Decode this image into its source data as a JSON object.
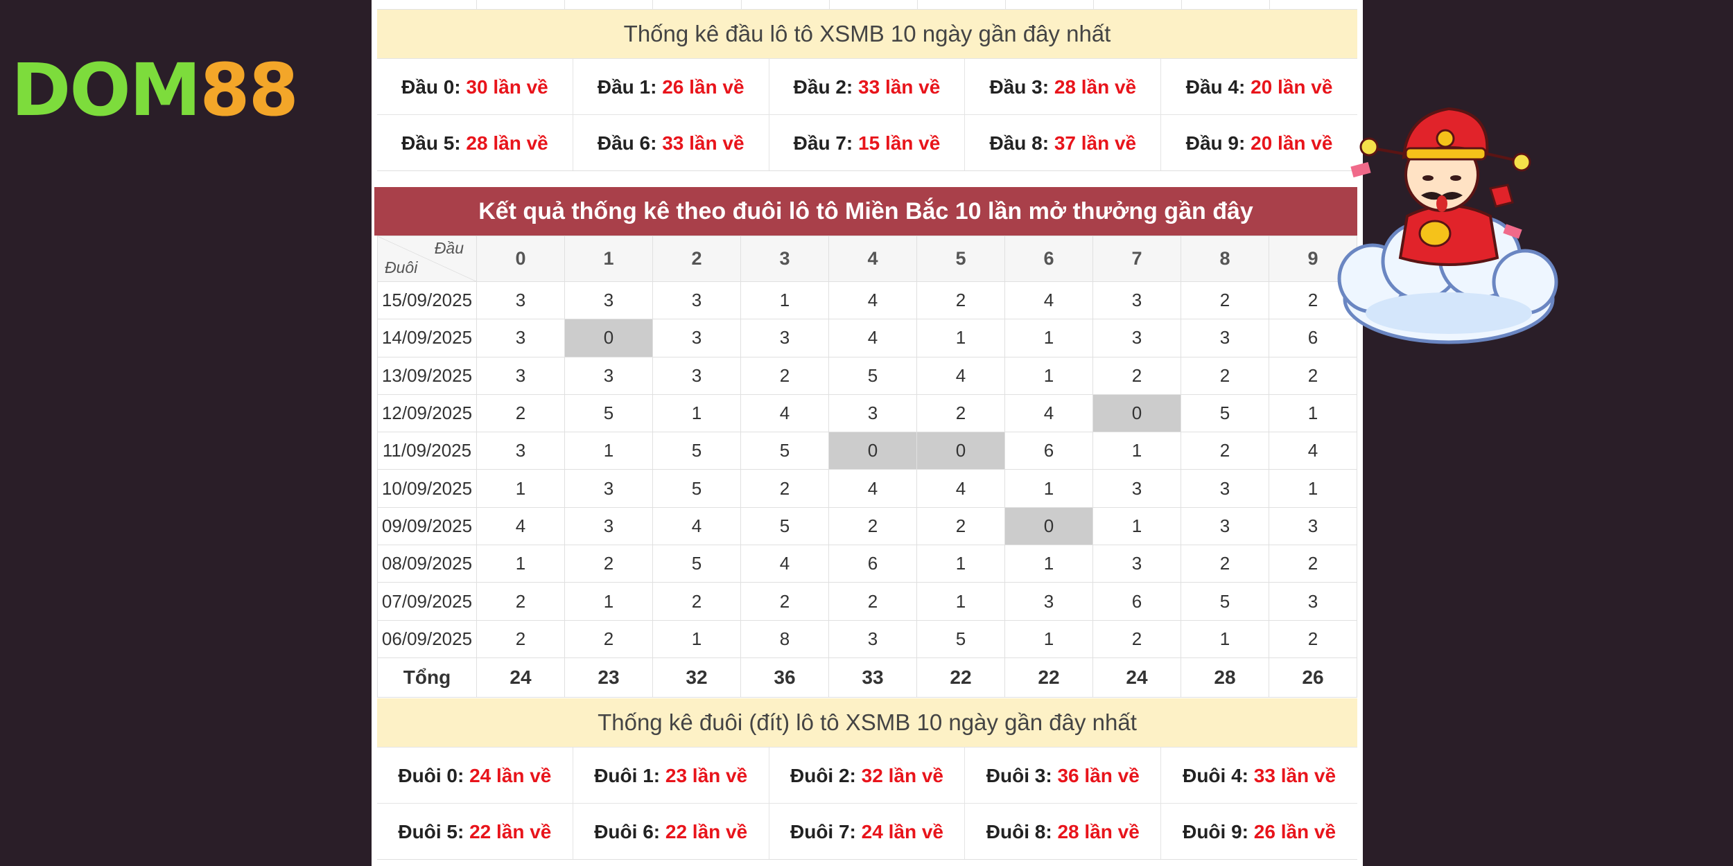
{
  "logo": {
    "part1": "DOM",
    "part2": "88"
  },
  "dau_stats": {
    "title": "Thống kê đầu lô tô XSMB 10 ngày gần đây nhất",
    "items": [
      {
        "label": "Đầu 0:",
        "value": "30 lần về"
      },
      {
        "label": "Đầu 1:",
        "value": "26 lần về"
      },
      {
        "label": "Đầu 2:",
        "value": "33 lần về"
      },
      {
        "label": "Đầu 3:",
        "value": "28 lần về"
      },
      {
        "label": "Đầu 4:",
        "value": "20 lần về"
      },
      {
        "label": "Đầu 5:",
        "value": "28 lần về"
      },
      {
        "label": "Đầu 6:",
        "value": "33 lần về"
      },
      {
        "label": "Đầu 7:",
        "value": "15 lần về"
      },
      {
        "label": "Đầu 8:",
        "value": "37 lần về"
      },
      {
        "label": "Đầu 9:",
        "value": "20 lần về"
      }
    ]
  },
  "duoi_table": {
    "title": "Kết quả thống kê theo đuôi lô tô Miền Bắc 10 lần mở thưởng gần đây",
    "corner_top": "Đầu",
    "corner_bottom": "Đuôi",
    "columns": [
      "0",
      "1",
      "2",
      "3",
      "4",
      "5",
      "6",
      "7",
      "8",
      "9"
    ],
    "rows": [
      {
        "date": "15/09/2025",
        "values": [
          "3",
          "3",
          "3",
          "1",
          "4",
          "2",
          "4",
          "3",
          "2",
          "2"
        ]
      },
      {
        "date": "14/09/2025",
        "values": [
          "3",
          "0",
          "3",
          "3",
          "4",
          "1",
          "1",
          "3",
          "3",
          "6"
        ]
      },
      {
        "date": "13/09/2025",
        "values": [
          "3",
          "3",
          "3",
          "2",
          "5",
          "4",
          "1",
          "2",
          "2",
          "2"
        ]
      },
      {
        "date": "12/09/2025",
        "values": [
          "2",
          "5",
          "1",
          "4",
          "3",
          "2",
          "4",
          "0",
          "5",
          "1"
        ]
      },
      {
        "date": "11/09/2025",
        "values": [
          "3",
          "1",
          "5",
          "5",
          "0",
          "0",
          "6",
          "1",
          "2",
          "4"
        ]
      },
      {
        "date": "10/09/2025",
        "values": [
          "1",
          "3",
          "5",
          "2",
          "4",
          "4",
          "1",
          "3",
          "3",
          "1"
        ]
      },
      {
        "date": "09/09/2025",
        "values": [
          "4",
          "3",
          "4",
          "5",
          "2",
          "2",
          "0",
          "1",
          "3",
          "3"
        ]
      },
      {
        "date": "08/09/2025",
        "values": [
          "1",
          "2",
          "5",
          "4",
          "6",
          "1",
          "1",
          "3",
          "2",
          "2"
        ]
      },
      {
        "date": "07/09/2025",
        "values": [
          "2",
          "1",
          "2",
          "2",
          "2",
          "1",
          "3",
          "6",
          "5",
          "3"
        ]
      },
      {
        "date": "06/09/2025",
        "values": [
          "2",
          "2",
          "1",
          "8",
          "3",
          "5",
          "1",
          "2",
          "1",
          "2"
        ]
      }
    ],
    "total_label": "Tổng",
    "totals": [
      "24",
      "23",
      "32",
      "36",
      "33",
      "22",
      "22",
      "24",
      "28",
      "26"
    ]
  },
  "duoi_stats": {
    "title": "Thống kê đuôi (đít) lô tô XSMB 10 ngày gần đây nhất",
    "items": [
      {
        "label": "Đuôi 0:",
        "value": "24 lần về"
      },
      {
        "label": "Đuôi 1:",
        "value": "23 lần về"
      },
      {
        "label": "Đuôi 2:",
        "value": "32 lần về"
      },
      {
        "label": "Đuôi 3:",
        "value": "36 lần về"
      },
      {
        "label": "Đuôi 4:",
        "value": "33 lần về"
      },
      {
        "label": "Đuôi 5:",
        "value": "22 lần về"
      },
      {
        "label": "Đuôi 6:",
        "value": "22 lần về"
      },
      {
        "label": "Đuôi 7:",
        "value": "24 lần về"
      },
      {
        "label": "Đuôi 8:",
        "value": "28 lần về"
      },
      {
        "label": "Đuôi 9:",
        "value": "26 lần về"
      }
    ]
  },
  "colors": {
    "background": "#2a1e28",
    "header_red": "#a9404a",
    "header_yellow": "#fdf1c6",
    "count_red": "#e8141b",
    "logo_green": "#7ddc3c",
    "logo_orange": "#f3a629",
    "zero_cell": "#cccccc"
  },
  "icons": [
    "god-of-wealth-mascot-icon"
  ]
}
